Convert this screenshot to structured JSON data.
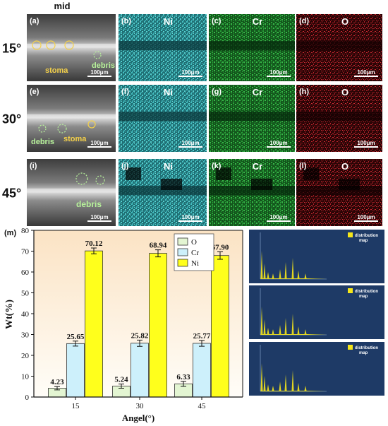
{
  "header": {
    "column_label": "mid"
  },
  "rows": [
    {
      "angle": "15°",
      "panels": [
        "(a)",
        "(b)",
        "(c)",
        "(d)"
      ],
      "sem_labels": [
        "stoma",
        "debris"
      ]
    },
    {
      "angle": "30°",
      "panels": [
        "(e)",
        "(f)",
        "(g)",
        "(h)"
      ],
      "sem_labels": [
        "debris",
        "stoma"
      ]
    },
    {
      "angle": "45°",
      "panels": [
        "(i)",
        "(j)",
        "(k)",
        "(l)"
      ],
      "sem_labels": [
        "debris"
      ]
    }
  ],
  "elements": [
    "Ni",
    "Cr",
    "O"
  ],
  "scale_bar": "100μm",
  "map_colors": {
    "sem": "#5a5a5a",
    "Ni": "#3fb7b7",
    "Cr": "#2ea83a",
    "O": "#c4202a"
  },
  "chart_panel_label": "(m)",
  "chart_data": {
    "type": "bar",
    "categories": [
      "15",
      "30",
      "45"
    ],
    "series": [
      {
        "name": "O",
        "values": [
          4.23,
          5.24,
          6.33
        ],
        "errors": [
          0.8,
          1.0,
          1.2
        ],
        "color": "#e3f5d2"
      },
      {
        "name": "Cr",
        "values": [
          25.65,
          25.82,
          25.77
        ],
        "errors": [
          1.2,
          1.5,
          1.4
        ],
        "color": "#cdf0fb"
      },
      {
        "name": "Ni",
        "values": [
          70.12,
          68.94,
          67.9
        ],
        "errors": [
          1.4,
          1.7,
          1.8
        ],
        "color": "#ffff1c"
      }
    ],
    "value_labels": [
      "4.23",
      "25.65",
      "70.12",
      "5.24",
      "25.82",
      "68.94",
      "6.33",
      "25.77",
      "67.90"
    ],
    "xlabel": "Angel(°)",
    "ylabel": "Wt(%)",
    "ylim": [
      0,
      80
    ],
    "yticks": [
      0,
      10,
      20,
      30,
      40,
      50,
      60,
      70,
      80
    ],
    "legend_position": "top-center"
  },
  "spectra": {
    "legend_text": [
      "distribution",
      "map"
    ],
    "count": 3,
    "bg": "#1e3a66",
    "accent": "#f5e61a"
  }
}
